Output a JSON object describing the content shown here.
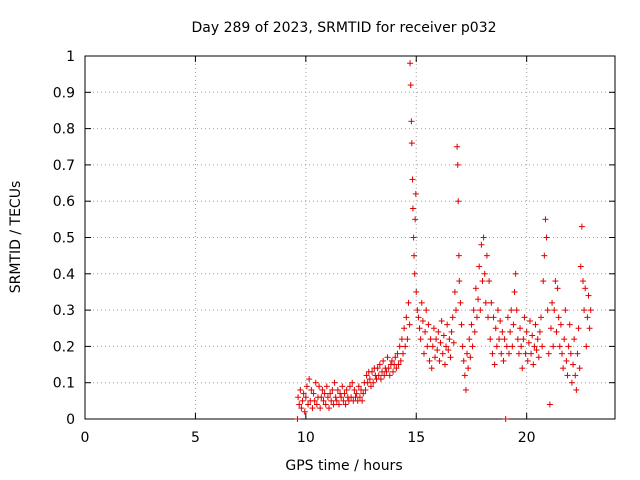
{
  "chart_data": {
    "type": "scatter",
    "title": "Day 289 of 2023, SRMTID for receiver p032",
    "xlabel": "GPS time / hours",
    "ylabel": "SRMTID / TECUs",
    "xlim": [
      0,
      24
    ],
    "ylim": [
      0,
      1
    ],
    "xticks": [
      0,
      5,
      10,
      15,
      20
    ],
    "yticks": [
      0,
      0.1,
      0.2,
      0.3,
      0.4,
      0.5,
      0.6,
      0.7,
      0.8,
      0.9,
      1
    ],
    "ytick_labels": [
      "0",
      "0.1",
      "0.2",
      "0.3",
      "0.4",
      "0.5",
      "0.6",
      "0.7",
      "0.8",
      "0.9",
      "1"
    ],
    "grid": true,
    "marker": "+",
    "color": "#e00000",
    "data_range": [
      9.6,
      22.9
    ],
    "series": [
      {
        "name": "SRMTID",
        "points": [
          [
            9.62,
            0.0
          ],
          [
            9.65,
            0.06
          ],
          [
            9.7,
            0.04
          ],
          [
            9.75,
            0.08
          ],
          [
            9.8,
            0.03
          ],
          [
            9.85,
            0.05
          ],
          [
            9.9,
            0.07
          ],
          [
            9.95,
            0.02
          ],
          [
            10.0,
            0.06
          ],
          [
            10.05,
            0.09
          ],
          [
            10.1,
            0.04
          ],
          [
            10.15,
            0.11
          ],
          [
            10.2,
            0.05
          ],
          [
            10.25,
            0.08
          ],
          [
            10.3,
            0.03
          ],
          [
            10.35,
            0.07
          ],
          [
            10.4,
            0.05
          ],
          [
            10.45,
            0.1
          ],
          [
            10.5,
            0.04
          ],
          [
            10.55,
            0.06
          ],
          [
            10.6,
            0.09
          ],
          [
            10.65,
            0.03
          ],
          [
            10.7,
            0.06
          ],
          [
            10.75,
            0.08
          ],
          [
            10.8,
            0.05
          ],
          [
            10.85,
            0.07
          ],
          [
            10.9,
            0.04
          ],
          [
            10.95,
            0.09
          ],
          [
            11.0,
            0.06
          ],
          [
            11.05,
            0.03
          ],
          [
            11.1,
            0.07
          ],
          [
            11.15,
            0.05
          ],
          [
            11.2,
            0.08
          ],
          [
            11.25,
            0.04
          ],
          [
            11.3,
            0.1
          ],
          [
            11.35,
            0.06
          ],
          [
            11.4,
            0.05
          ],
          [
            11.45,
            0.08
          ],
          [
            11.5,
            0.04
          ],
          [
            11.55,
            0.07
          ],
          [
            11.6,
            0.06
          ],
          [
            11.65,
            0.09
          ],
          [
            11.7,
            0.05
          ],
          [
            11.75,
            0.07
          ],
          [
            11.8,
            0.04
          ],
          [
            11.85,
            0.08
          ],
          [
            11.9,
            0.06
          ],
          [
            11.95,
            0.05
          ],
          [
            12.0,
            0.09
          ],
          [
            12.05,
            0.06
          ],
          [
            12.1,
            0.1
          ],
          [
            12.15,
            0.05
          ],
          [
            12.2,
            0.08
          ],
          [
            12.25,
            0.06
          ],
          [
            12.3,
            0.07
          ],
          [
            12.35,
            0.05
          ],
          [
            12.4,
            0.09
          ],
          [
            12.45,
            0.06
          ],
          [
            12.5,
            0.08
          ],
          [
            12.55,
            0.05
          ],
          [
            12.6,
            0.07
          ],
          [
            12.65,
            0.1
          ],
          [
            12.7,
            0.08
          ],
          [
            12.75,
            0.12
          ],
          [
            12.8,
            0.1
          ],
          [
            12.85,
            0.13
          ],
          [
            12.9,
            0.11
          ],
          [
            12.95,
            0.09
          ],
          [
            13.0,
            0.13
          ],
          [
            13.05,
            0.1
          ],
          [
            13.1,
            0.14
          ],
          [
            13.15,
            0.12
          ],
          [
            13.2,
            0.11
          ],
          [
            13.25,
            0.14
          ],
          [
            13.3,
            0.12
          ],
          [
            13.35,
            0.15
          ],
          [
            13.4,
            0.11
          ],
          [
            13.45,
            0.13
          ],
          [
            13.5,
            0.16
          ],
          [
            13.55,
            0.12
          ],
          [
            13.6,
            0.14
          ],
          [
            13.65,
            0.13
          ],
          [
            13.7,
            0.17
          ],
          [
            13.75,
            0.14
          ],
          [
            13.8,
            0.12
          ],
          [
            13.85,
            0.15
          ],
          [
            13.9,
            0.16
          ],
          [
            13.95,
            0.13
          ],
          [
            14.0,
            0.15
          ],
          [
            14.05,
            0.17
          ],
          [
            14.1,
            0.14
          ],
          [
            14.15,
            0.18
          ],
          [
            14.2,
            0.15
          ],
          [
            14.25,
            0.2
          ],
          [
            14.3,
            0.16
          ],
          [
            14.35,
            0.22
          ],
          [
            14.4,
            0.18
          ],
          [
            14.45,
            0.25
          ],
          [
            14.5,
            0.2
          ],
          [
            14.55,
            0.28
          ],
          [
            14.6,
            0.22
          ],
          [
            14.65,
            0.32
          ],
          [
            14.7,
            0.26
          ],
          [
            14.72,
            0.98
          ],
          [
            14.75,
            0.92
          ],
          [
            14.78,
            0.82
          ],
          [
            14.8,
            0.76
          ],
          [
            14.83,
            0.66
          ],
          [
            14.85,
            0.58
          ],
          [
            14.88,
            0.5
          ],
          [
            14.9,
            0.45
          ],
          [
            14.93,
            0.4
          ],
          [
            14.95,
            0.55
          ],
          [
            14.98,
            0.62
          ],
          [
            15.0,
            0.35
          ],
          [
            15.05,
            0.3
          ],
          [
            15.1,
            0.28
          ],
          [
            15.15,
            0.25
          ],
          [
            15.2,
            0.22
          ],
          [
            15.25,
            0.32
          ],
          [
            15.3,
            0.27
          ],
          [
            15.35,
            0.18
          ],
          [
            15.4,
            0.24
          ],
          [
            15.45,
            0.3
          ],
          [
            15.5,
            0.2
          ],
          [
            15.55,
            0.26
          ],
          [
            15.6,
            0.16
          ],
          [
            15.65,
            0.22
          ],
          [
            15.7,
            0.14
          ],
          [
            15.75,
            0.2
          ],
          [
            15.8,
            0.25
          ],
          [
            15.85,
            0.17
          ],
          [
            15.9,
            0.22
          ],
          [
            15.95,
            0.19
          ],
          [
            16.0,
            0.24
          ],
          [
            16.05,
            0.16
          ],
          [
            16.1,
            0.21
          ],
          [
            16.15,
            0.27
          ],
          [
            16.2,
            0.18
          ],
          [
            16.25,
            0.23
          ],
          [
            16.3,
            0.15
          ],
          [
            16.35,
            0.2
          ],
          [
            16.4,
            0.26
          ],
          [
            16.45,
            0.19
          ],
          [
            16.5,
            0.22
          ],
          [
            16.55,
            0.17
          ],
          [
            16.6,
            0.24
          ],
          [
            16.65,
            0.28
          ],
          [
            16.7,
            0.21
          ],
          [
            16.75,
            0.35
          ],
          [
            16.8,
            0.3
          ],
          [
            16.85,
            0.75
          ],
          [
            16.88,
            0.7
          ],
          [
            16.9,
            0.6
          ],
          [
            16.93,
            0.45
          ],
          [
            16.95,
            0.38
          ],
          [
            17.0,
            0.32
          ],
          [
            17.05,
            0.26
          ],
          [
            17.1,
            0.2
          ],
          [
            17.15,
            0.16
          ],
          [
            17.2,
            0.12
          ],
          [
            17.25,
            0.08
          ],
          [
            17.3,
            0.18
          ],
          [
            17.35,
            0.14
          ],
          [
            17.4,
            0.22
          ],
          [
            17.45,
            0.17
          ],
          [
            17.5,
            0.26
          ],
          [
            17.55,
            0.2
          ],
          [
            17.6,
            0.3
          ],
          [
            17.65,
            0.24
          ],
          [
            17.7,
            0.36
          ],
          [
            17.75,
            0.28
          ],
          [
            17.8,
            0.33
          ],
          [
            17.85,
            0.42
          ],
          [
            17.9,
            0.3
          ],
          [
            17.95,
            0.48
          ],
          [
            18.0,
            0.38
          ],
          [
            18.05,
            0.5
          ],
          [
            18.1,
            0.4
          ],
          [
            18.15,
            0.32
          ],
          [
            18.2,
            0.45
          ],
          [
            18.25,
            0.28
          ],
          [
            18.3,
            0.38
          ],
          [
            18.35,
            0.22
          ],
          [
            18.4,
            0.32
          ],
          [
            18.45,
            0.18
          ],
          [
            18.5,
            0.28
          ],
          [
            18.55,
            0.15
          ],
          [
            18.6,
            0.25
          ],
          [
            18.65,
            0.2
          ],
          [
            18.7,
            0.3
          ],
          [
            18.75,
            0.22
          ],
          [
            18.8,
            0.27
          ],
          [
            18.85,
            0.18
          ],
          [
            18.9,
            0.24
          ],
          [
            18.95,
            0.16
          ],
          [
            19.0,
            0.22
          ],
          [
            19.05,
            0.0
          ],
          [
            19.1,
            0.2
          ],
          [
            19.15,
            0.28
          ],
          [
            19.2,
            0.18
          ],
          [
            19.25,
            0.24
          ],
          [
            19.3,
            0.3
          ],
          [
            19.35,
            0.2
          ],
          [
            19.4,
            0.26
          ],
          [
            19.45,
            0.35
          ],
          [
            19.5,
            0.4
          ],
          [
            19.55,
            0.3
          ],
          [
            19.6,
            0.22
          ],
          [
            19.65,
            0.18
          ],
          [
            19.7,
            0.25
          ],
          [
            19.75,
            0.2
          ],
          [
            19.8,
            0.14
          ],
          [
            19.85,
            0.22
          ],
          [
            19.9,
            0.28
          ],
          [
            19.95,
            0.18
          ],
          [
            20.0,
            0.24
          ],
          [
            20.05,
            0.16
          ],
          [
            20.1,
            0.21
          ],
          [
            20.15,
            0.27
          ],
          [
            20.2,
            0.18
          ],
          [
            20.25,
            0.23
          ],
          [
            20.3,
            0.15
          ],
          [
            20.35,
            0.2
          ],
          [
            20.4,
            0.26
          ],
          [
            20.45,
            0.19
          ],
          [
            20.5,
            0.22
          ],
          [
            20.55,
            0.17
          ],
          [
            20.6,
            0.24
          ],
          [
            20.65,
            0.28
          ],
          [
            20.7,
            0.2
          ],
          [
            20.75,
            0.38
          ],
          [
            20.8,
            0.45
          ],
          [
            20.85,
            0.55
          ],
          [
            20.9,
            0.5
          ],
          [
            20.95,
            0.3
          ],
          [
            21.0,
            0.18
          ],
          [
            21.05,
            0.04
          ],
          [
            21.1,
            0.25
          ],
          [
            21.15,
            0.32
          ],
          [
            21.2,
            0.2
          ],
          [
            21.25,
            0.3
          ],
          [
            21.3,
            0.38
          ],
          [
            21.35,
            0.24
          ],
          [
            21.4,
            0.36
          ],
          [
            21.45,
            0.28
          ],
          [
            21.5,
            0.2
          ],
          [
            21.55,
            0.26
          ],
          [
            21.6,
            0.18
          ],
          [
            21.65,
            0.14
          ],
          [
            21.7,
            0.22
          ],
          [
            21.75,
            0.3
          ],
          [
            21.8,
            0.16
          ],
          [
            21.85,
            0.12
          ],
          [
            21.9,
            0.2
          ],
          [
            21.95,
            0.26
          ],
          [
            22.0,
            0.18
          ],
          [
            22.05,
            0.1
          ],
          [
            22.1,
            0.15
          ],
          [
            22.15,
            0.22
          ],
          [
            22.2,
            0.12
          ],
          [
            22.25,
            0.08
          ],
          [
            22.3,
            0.18
          ],
          [
            22.35,
            0.25
          ],
          [
            22.4,
            0.14
          ],
          [
            22.45,
            0.42
          ],
          [
            22.5,
            0.53
          ],
          [
            22.55,
            0.38
          ],
          [
            22.6,
            0.3
          ],
          [
            22.65,
            0.36
          ],
          [
            22.7,
            0.2
          ],
          [
            22.75,
            0.28
          ],
          [
            22.8,
            0.34
          ],
          [
            22.85,
            0.25
          ],
          [
            22.9,
            0.3
          ]
        ]
      }
    ]
  }
}
